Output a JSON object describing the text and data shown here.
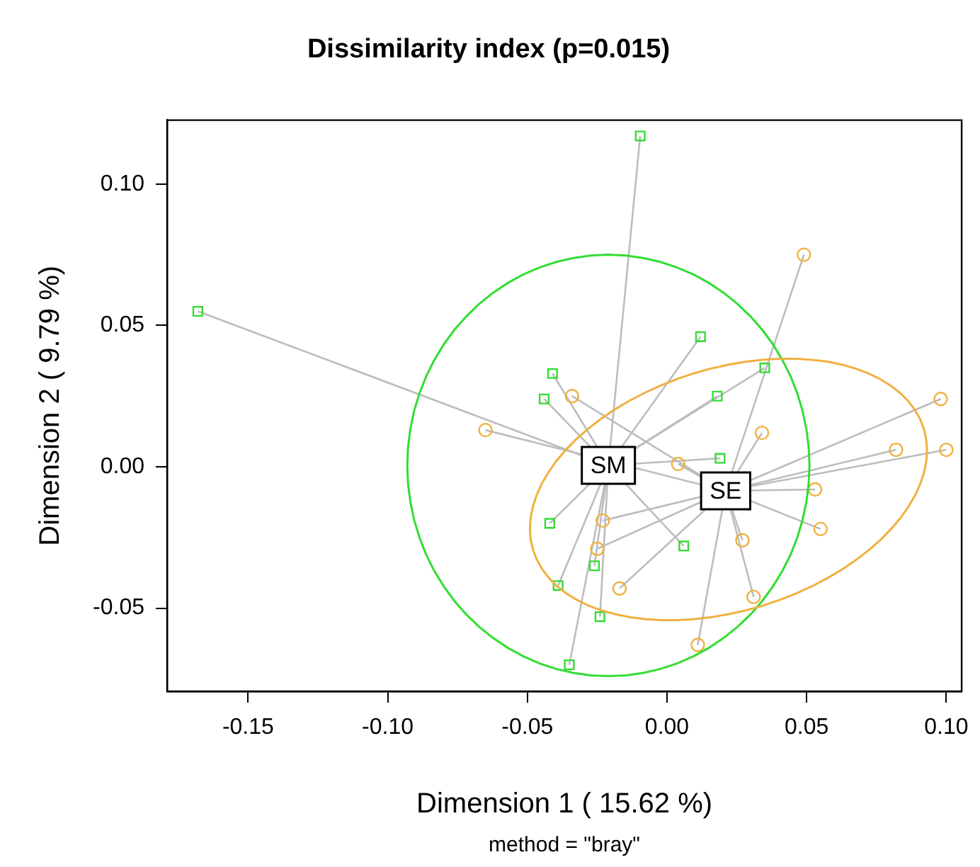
{
  "chart_data": {
    "type": "scatter",
    "title": "Dissimilarity index (p=0.015)",
    "xlabel": "Dimension 1 ( 15.62 %)",
    "ylabel": "Dimension 2 ( 9.79 %)",
    "xlim": [
      -0.179,
      0.1055
    ],
    "ylim": [
      -0.0794,
      0.1226
    ],
    "xticks": [
      -0.15,
      {
        "value": -0.1,
        "label": "-0.10"
      },
      -0.05,
      {
        "value": 0,
        "label": "0.00"
      },
      0.05,
      {
        "value": 0.1,
        "label": "0.10"
      }
    ],
    "yticks": [
      -0.05,
      {
        "value": 0,
        "label": "0.00"
      },
      0.05,
      {
        "value": 0.1,
        "label": "0.10"
      }
    ],
    "grid": false,
    "legend": false,
    "series": [
      {
        "color": "#33dd33",
        "marker": "square",
        "x": [
          -0.168,
          -0.0096,
          -0.041,
          -0.044,
          0.012,
          0.035,
          0.018,
          0.019,
          -0.042,
          0.006,
          -0.026,
          -0.039,
          -0.024,
          -0.035
        ],
        "values": [
          0.055,
          0.117,
          0.033,
          0.024,
          0.046,
          0.035,
          0.025,
          0.003,
          -0.02,
          -0.028,
          -0.035,
          -0.042,
          -0.053,
          -0.07
        ]
      },
      {
        "color": "#f0b040",
        "marker": "circle",
        "x": [
          0.049,
          -0.065,
          -0.034,
          0.004,
          0.034,
          0.098,
          0.1,
          0.082,
          0.053,
          0.055,
          -0.023,
          -0.025,
          -0.017,
          0.027,
          0.031,
          0.011
        ],
        "values": [
          0.075,
          0.013,
          0.025,
          0.001,
          0.012,
          0.024,
          0.006,
          0.006,
          -0.008,
          -0.022,
          -0.019,
          -0.029,
          -0.043,
          -0.026,
          -0.046,
          -0.063
        ]
      }
    ],
    "annotations": [
      {
        "text": "SM",
        "x": -0.021,
        "y": 0.0005
      },
      {
        "text": "SE",
        "x": 0.021,
        "y": -0.0085
      },
      "method = \"bray\""
    ]
  }
}
